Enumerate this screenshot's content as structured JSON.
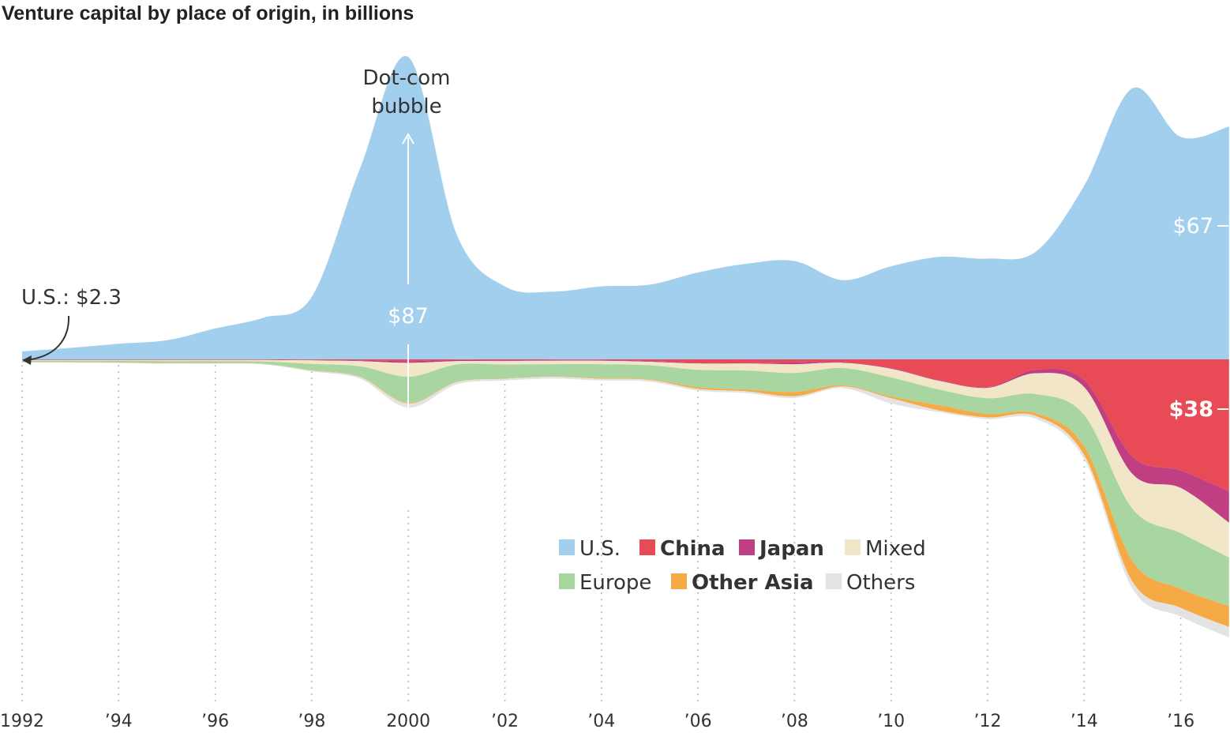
{
  "chart_data": {
    "type": "area",
    "subtype": "streamgraph",
    "title": "Venture capital by place of origin, in billions",
    "x_unit": "year",
    "xlim": [
      1992,
      2017
    ],
    "x_ticks": [
      {
        "year": 1992,
        "label": "1992"
      },
      {
        "year": 1994,
        "label": "’94"
      },
      {
        "year": 1996,
        "label": "’96"
      },
      {
        "year": 1998,
        "label": "’98"
      },
      {
        "year": 2000,
        "label": "2000"
      },
      {
        "year": 2002,
        "label": "’02"
      },
      {
        "year": 2004,
        "label": "’04"
      },
      {
        "year": 2006,
        "label": "’06"
      },
      {
        "year": 2008,
        "label": "’08"
      },
      {
        "year": 2010,
        "label": "’10"
      },
      {
        "year": 2012,
        "label": "’12"
      },
      {
        "year": 2014,
        "label": "’14"
      },
      {
        "year": 2016,
        "label": "’16"
      }
    ],
    "x": [
      1992,
      1993,
      1994,
      1995,
      1996,
      1997,
      1998,
      1999,
      2000,
      2001,
      2002,
      2003,
      2004,
      2005,
      2006,
      2007,
      2008,
      2009,
      2010,
      2011,
      2012,
      2013,
      2014,
      2015,
      2016,
      2017
    ],
    "series": [
      {
        "name": "U.S.",
        "color": "#a3cfee",
        "bold": false,
        "values": [
          2.3,
          3.3,
          4.5,
          5.5,
          8.9,
          12,
          18,
          55,
          87,
          36,
          21,
          19.5,
          21,
          21.5,
          25,
          27.5,
          28.3,
          22.8,
          26.8,
          29.5,
          29,
          31,
          50,
          78,
          64,
          67
        ]
      },
      {
        "name": "China",
        "color": "#e84b55",
        "bold": true,
        "values": [
          0.1,
          0.1,
          0.1,
          0.1,
          0.1,
          0.1,
          0.2,
          0.3,
          0.5,
          0.2,
          0.3,
          0.2,
          0.2,
          0.5,
          1,
          1,
          0.9,
          0.8,
          2.5,
          6,
          8,
          3,
          6,
          28,
          32,
          38
        ]
      },
      {
        "name": "Japan",
        "color": "#bf3f82",
        "bold": true,
        "values": [
          0.1,
          0.1,
          0.1,
          0.1,
          0.1,
          0.1,
          0.1,
          0.2,
          0.5,
          0.3,
          0.2,
          0.2,
          0.2,
          0.2,
          0.2,
          0.2,
          0.5,
          0.2,
          0.2,
          0.2,
          0.2,
          1,
          2,
          5,
          5,
          9
        ]
      },
      {
        "name": "Mixed",
        "color": "#f1e7c8",
        "bold": false,
        "values": [
          0.2,
          0.2,
          0.2,
          0.3,
          0.3,
          0.4,
          1,
          1.5,
          4,
          1,
          1,
          1,
          1,
          1,
          1.8,
          2,
          2.5,
          1.5,
          2.5,
          2.5,
          3,
          6,
          8,
          10,
          13,
          10
        ]
      },
      {
        "name": "Europe",
        "color": "#a9d6a0",
        "bold": false,
        "values": [
          0.4,
          0.4,
          0.5,
          0.6,
          0.6,
          0.7,
          1.8,
          3,
          7.5,
          5,
          4,
          3.5,
          4,
          4,
          5,
          5.5,
          5.5,
          5,
          5.5,
          4.5,
          4.5,
          5.5,
          9,
          15,
          16,
          14
        ]
      },
      {
        "name": "Other Asia",
        "color": "#f5aa45",
        "bold": true,
        "values": [
          0.05,
          0.05,
          0.05,
          0.05,
          0.05,
          0.05,
          0.1,
          0.1,
          0.2,
          0.1,
          0.1,
          0.1,
          0.2,
          0.2,
          0.5,
          0.5,
          1.2,
          0.3,
          0.5,
          1.5,
          1,
          0.8,
          2.5,
          6,
          5.5,
          6
        ]
      },
      {
        "name": "Others",
        "color": "#e3e3e3",
        "bold": false,
        "values": [
          0.1,
          0.1,
          0.1,
          0.1,
          0.1,
          0.1,
          0.3,
          0.5,
          1.2,
          0.6,
          0.5,
          0.5,
          0.5,
          0.5,
          0.5,
          0.5,
          0.5,
          0.5,
          1.5,
          0.5,
          0.5,
          0.8,
          1.2,
          2,
          2.5,
          3
        ]
      }
    ],
    "annotations": {
      "dotcom_line1": "Dot-com",
      "dotcom_line2": "bubble",
      "us_1992": "U.S.: $2.3",
      "us_2000": "$87",
      "us_2017": "$67",
      "china_2017": "$38"
    },
    "grid": "vertical dotted",
    "legend_position": "center-right, lower"
  }
}
